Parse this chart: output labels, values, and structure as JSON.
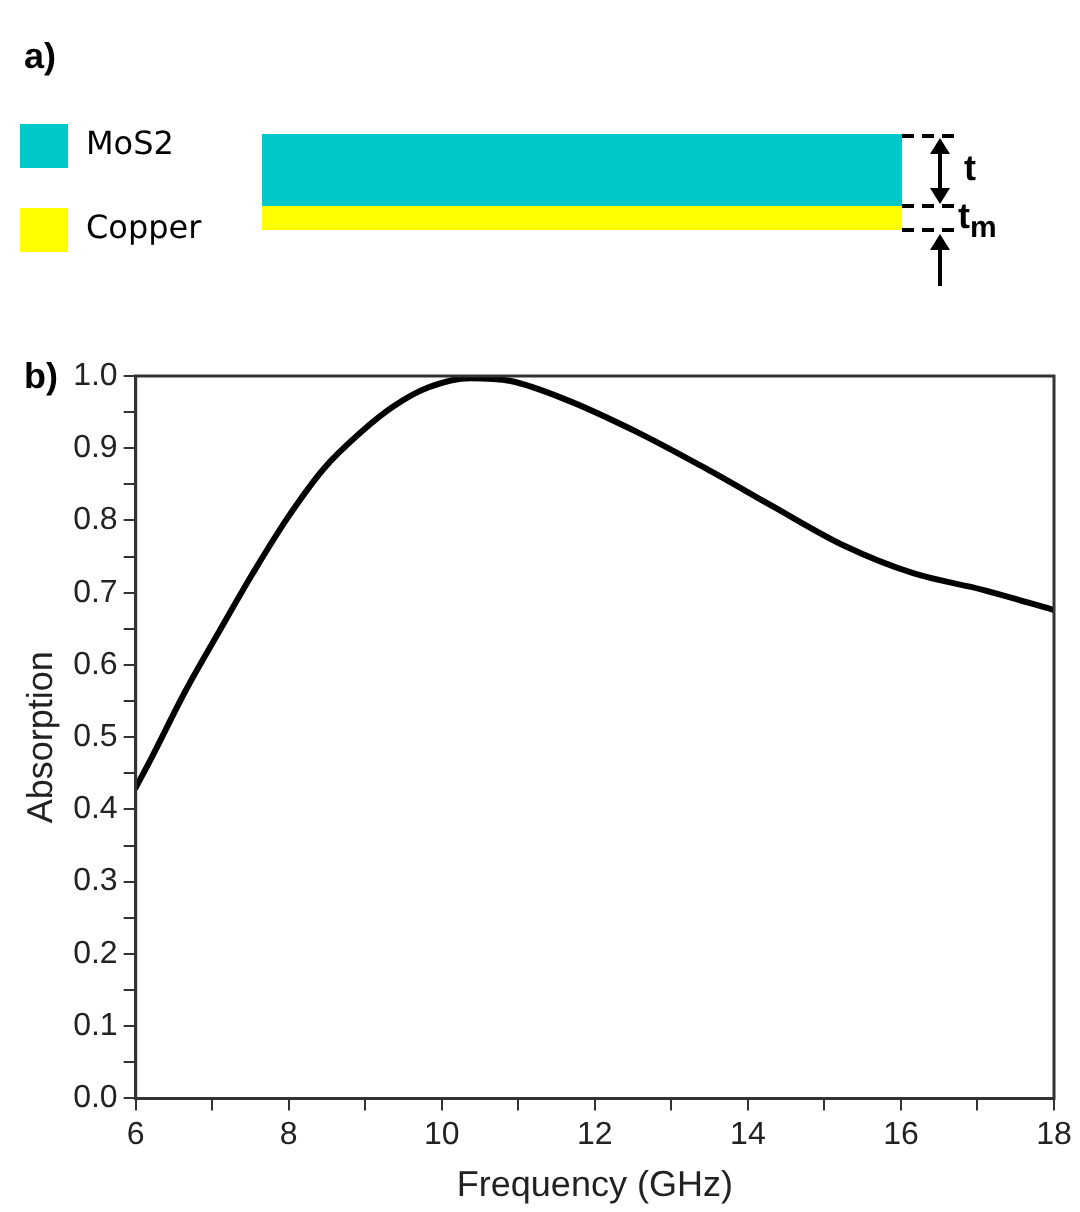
{
  "chart_data": {
    "type": "line",
    "xlabel": "Frequency (GHz)",
    "ylabel": "Absorption",
    "annotations": [
      "a)",
      "MoS2",
      "Copper",
      "t",
      "t$_{m}$",
      "b)"
    ],
    "x": [
      6,
      6.2,
      6.65,
      7.1,
      7.56,
      8,
      8.46,
      8.92,
      9.37,
      9.82,
      10.37,
      10.9,
      11.63,
      12.54,
      13.45,
      14.35,
      15.26,
      16.16,
      17.07,
      18
    ],
    "series": [
      {
        "color": "#000000",
        "values": [
          0.43,
          0.47,
          0.564,
          0.648,
          0.732,
          0.806,
          0.872,
          0.92,
          0.958,
          0.984,
          0.997,
          0.993,
          0.967,
          0.923,
          0.872,
          0.818,
          0.765,
          0.727,
          0.704,
          0.676
        ]
      }
    ],
    "xlim": [
      6,
      18
    ],
    "xticks": [
      6,
      {
        "value": 7,
        "label": null
      },
      8,
      {
        "value": 9,
        "label": null
      },
      10,
      {
        "value": 11,
        "label": null
      },
      12,
      {
        "value": 13,
        "label": null
      },
      14,
      {
        "value": 15,
        "label": null
      },
      16,
      {
        "value": 17,
        "label": null
      },
      18
    ],
    "ylim": [
      0,
      1
    ],
    "yticks": [
      {
        "value": 0,
        "label": "0.0"
      },
      {
        "value": 0.05,
        "label": null
      },
      {
        "value": 0.1,
        "label": "0.1"
      },
      {
        "value": 0.15,
        "label": null
      },
      {
        "value": 0.2,
        "label": "0.2"
      },
      {
        "value": 0.25,
        "label": null
      },
      {
        "value": 0.3,
        "label": "0.3"
      },
      {
        "value": 0.35,
        "label": null
      },
      {
        "value": 0.4,
        "label": "0.4"
      },
      {
        "value": 0.45,
        "label": null
      },
      {
        "value": 0.5,
        "label": "0.5"
      },
      {
        "value": 0.55,
        "label": null
      },
      {
        "value": 0.6,
        "label": "0.6"
      },
      {
        "value": 0.65,
        "label": null
      },
      {
        "value": 0.7,
        "label": "0.7"
      },
      {
        "value": 0.75,
        "label": null
      },
      {
        "value": 0.8,
        "label": "0.8"
      },
      {
        "value": 0.85,
        "label": null
      },
      {
        "value": 0.9,
        "label": "0.9"
      },
      {
        "value": 0.95,
        "label": null
      },
      {
        "value": 1,
        "label": "1.0"
      }
    ],
    "grid": false,
    "legend": false,
    "marker": "none",
    "line_style": "solid"
  }
}
